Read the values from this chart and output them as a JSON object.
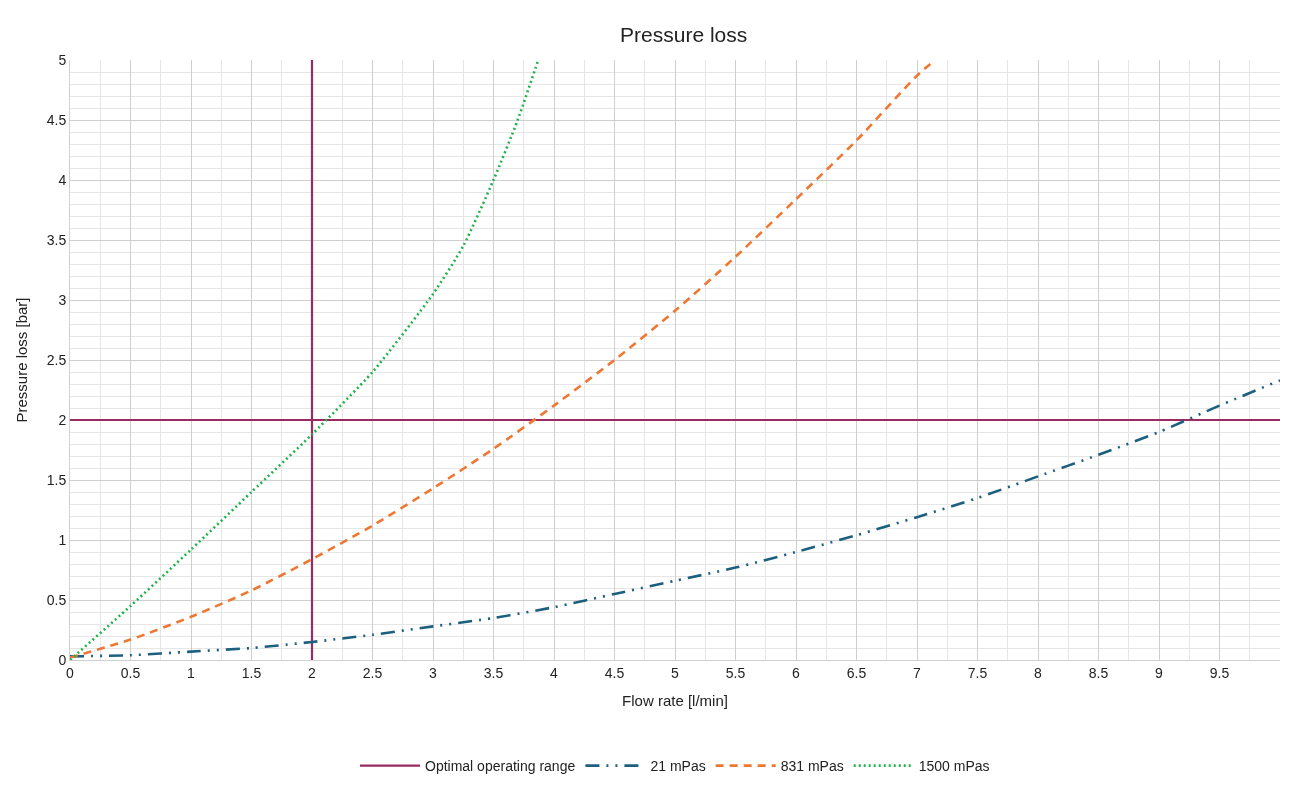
{
  "chart_data": {
    "type": "line",
    "title": "Pressure loss",
    "xlabel": "Flow rate [l/min]",
    "ylabel": "Pressure loss [bar]",
    "xlim": [
      0,
      10
    ],
    "xticks": [
      0,
      0.5,
      1,
      1.5,
      2,
      2.5,
      3,
      3.5,
      4,
      4.5,
      5,
      5.5,
      6,
      6.5,
      7,
      7.5,
      8,
      8.5,
      9,
      9.5
    ],
    "ylim": [
      0,
      5
    ],
    "yticks": [
      0,
      0.5,
      1,
      1.5,
      2,
      2.5,
      3,
      3.5,
      4,
      4.5,
      5
    ],
    "grid": true,
    "legend": "bottom",
    "marker": "none",
    "series": [
      {
        "name": "Optimal operating range",
        "color": "#9b2a62",
        "line_style": "solid",
        "x": [
          2,
          2
        ],
        "values": [
          0,
          5
        ]
      },
      {
        "color": "#9b2a62",
        "line_style": "solid",
        "x": [
          0,
          10
        ],
        "values": [
          2,
          2
        ]
      },
      {
        "name": "21 mPas",
        "color": "#1d5f7e",
        "line_style": "dashdotdot",
        "x": [
          0,
          0.5,
          1,
          1.5,
          2,
          2.5,
          3,
          3.5,
          4,
          4.5,
          5,
          5.5,
          6,
          6.5,
          7,
          7.5,
          8,
          8.5,
          9,
          9.5,
          10
        ],
        "values": [
          0.03,
          0.04,
          0.07,
          0.1,
          0.15,
          0.21,
          0.28,
          0.35,
          0.44,
          0.55,
          0.66,
          0.77,
          0.9,
          1.04,
          1.19,
          1.35,
          1.53,
          1.71,
          1.9,
          2.12,
          2.33
        ]
      },
      {
        "name": "831 mPas",
        "color": "#ee7733",
        "line_style": "dashed",
        "x": [
          0,
          0.5,
          1,
          1.5,
          2,
          2.5,
          3,
          3.5,
          4,
          4.5,
          5,
          5.5,
          6,
          6.5,
          7,
          7.15
        ],
        "values": [
          0.02,
          0.17,
          0.36,
          0.58,
          0.84,
          1.12,
          1.43,
          1.76,
          2.12,
          2.5,
          2.91,
          3.36,
          3.84,
          4.33,
          4.87,
          5.0
        ]
      },
      {
        "name": "1500 mPas",
        "color": "#22b24c",
        "line_style": "dotted",
        "x": [
          0,
          0.5,
          1,
          1.5,
          2,
          2.5,
          3,
          3.25,
          3.5,
          3.7,
          3.87
        ],
        "values": [
          0,
          0.45,
          0.92,
          1.4,
          1.88,
          2.4,
          3.05,
          3.45,
          4.0,
          4.5,
          5.0
        ]
      }
    ]
  }
}
